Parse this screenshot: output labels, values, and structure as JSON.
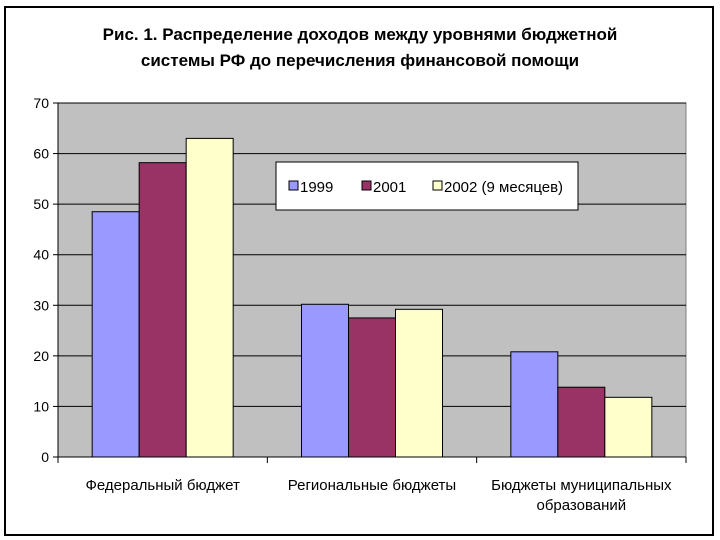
{
  "chart_data": {
    "type": "bar",
    "title": [
      "Рис. 1. Распределение доходов между уровнями бюджетной",
      "системы РФ до перечисления финансовой помощи"
    ],
    "categories": [
      [
        "Федеральный бюджет"
      ],
      [
        "Региональные бюджеты"
      ],
      [
        "Бюджеты муниципальных",
        "образований"
      ]
    ],
    "series": [
      {
        "name": "1999",
        "color": "#9999ff",
        "values": [
          48.5,
          30.2,
          20.8
        ]
      },
      {
        "name": "2001",
        "color": "#993366",
        "values": [
          58.2,
          27.5,
          13.8
        ]
      },
      {
        "name": "2002 (9 месяцев)",
        "color": "#ffffcc",
        "values": [
          63.0,
          29.2,
          11.8
        ]
      }
    ],
    "ylim": [
      0,
      70
    ],
    "yticks": [
      0,
      10,
      20,
      30,
      40,
      50,
      60,
      70
    ],
    "grid": true,
    "plot_background": "#c0c0c0",
    "legend_position": "inside-top-right"
  }
}
